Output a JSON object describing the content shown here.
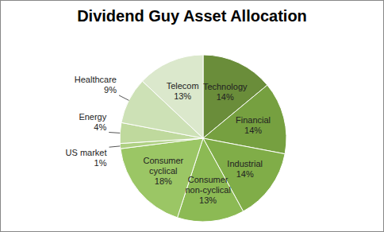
{
  "chart_data": {
    "type": "pie",
    "title": "Dividend Guy Asset Allocation",
    "categories": [
      "Technology",
      "Financial",
      "Industrial",
      "Consumer non-cyclical",
      "Consumer cyclical",
      "US market",
      "Energy",
      "Healthcare",
      "Telecom"
    ],
    "values": [
      14,
      14,
      14,
      13,
      18,
      1,
      4,
      9,
      13
    ],
    "value_labels": [
      "14%",
      "14%",
      "14%",
      "13%",
      "18%",
      "1%",
      "4%",
      "9%",
      "13%"
    ],
    "colors": [
      "#6a8d3a",
      "#76a040",
      "#80ad48",
      "#8cba54",
      "#9bc665",
      "#aed082",
      "#bfd99d",
      "#cde1b6",
      "#dbe8cc"
    ],
    "data_labels": true
  }
}
